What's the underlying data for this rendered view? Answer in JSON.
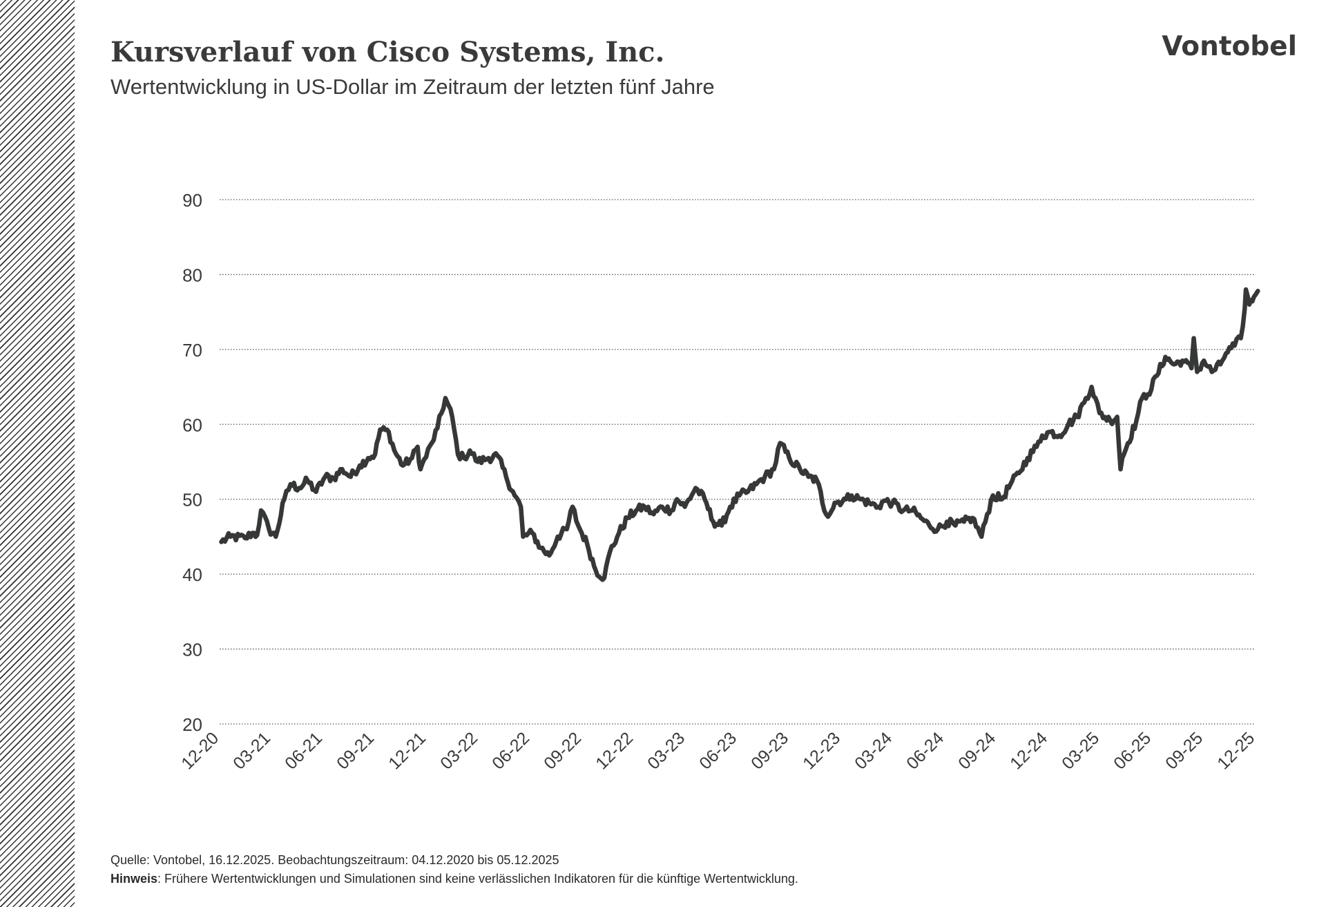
{
  "header": {
    "title": "Kursverlauf von Cisco Systems, Inc.",
    "subtitle": "Wertentwicklung in US-Dollar im Zeitraum der letzten fünf Jahre",
    "brand": "Vontobel"
  },
  "footer": {
    "source": "Quelle: Vontobel, 16.12.2025. Beobachtungszeitraum: 04.12.2020 bis 05.12.2025",
    "note_label": "Hinweis",
    "note_text": ": Frühere Wertentwicklungen und Simulationen sind keine verlässlichen Indikatoren für die künftige Wertentwicklung."
  },
  "colors": {
    "line": "#353836",
    "text": "#3a3a3a",
    "grid": "#555555"
  },
  "chart_data": {
    "type": "line",
    "title": "Kursverlauf von Cisco Systems, Inc.",
    "subtitle": "Wertentwicklung in US-Dollar im Zeitraum der letzten fünf Jahre",
    "xlabel": "",
    "ylabel": "",
    "ylim": [
      20,
      90
    ],
    "yticks": [
      20,
      30,
      40,
      50,
      60,
      70,
      80,
      90
    ],
    "xticks": [
      "12-20",
      "03-21",
      "06-21",
      "09-21",
      "12-21",
      "03-22",
      "06-22",
      "09-22",
      "12-22",
      "03-23",
      "06-23",
      "09-23",
      "12-23",
      "03-24",
      "06-24",
      "09-24",
      "12-24",
      "03-25",
      "06-25",
      "09-25",
      "12-25"
    ],
    "grid": "horizontal dotted",
    "legend": "none",
    "series": [
      {
        "x": [
          "2020-12-04",
          "2020-12-20",
          "2021-01-15",
          "2021-01-28",
          "2021-02-05",
          "2021-02-12",
          "2021-02-26",
          "2021-03-10",
          "2021-03-25",
          "2021-04-05",
          "2021-04-20",
          "2021-05-05",
          "2021-05-20",
          "2021-06-05",
          "2021-06-20",
          "2021-07-05",
          "2021-07-20",
          "2021-08-05",
          "2021-08-20",
          "2021-09-01",
          "2021-09-10",
          "2021-09-25",
          "2021-10-05",
          "2021-10-20",
          "2021-11-05",
          "2021-11-15",
          "2021-11-20",
          "2021-12-10",
          "2021-12-20",
          "2022-01-03",
          "2022-01-15",
          "2022-01-25",
          "2022-02-05",
          "2022-02-15",
          "2022-03-01",
          "2022-03-20",
          "2022-04-05",
          "2022-04-20",
          "2022-05-05",
          "2022-05-16",
          "2022-05-20",
          "2022-06-05",
          "2022-06-20",
          "2022-07-05",
          "2022-07-20",
          "2022-08-05",
          "2022-08-15",
          "2022-08-25",
          "2022-09-10",
          "2022-09-25",
          "2022-10-10",
          "2022-10-20",
          "2022-11-05",
          "2022-11-20",
          "2022-12-05",
          "2022-12-20",
          "2023-01-05",
          "2023-01-20",
          "2023-02-05",
          "2023-02-15",
          "2023-03-01",
          "2023-03-20",
          "2023-04-05",
          "2023-04-20",
          "2023-05-05",
          "2023-05-20",
          "2023-06-05",
          "2023-06-20",
          "2023-07-05",
          "2023-07-20",
          "2023-08-05",
          "2023-08-16",
          "2023-09-01",
          "2023-09-20",
          "2023-10-05",
          "2023-10-20",
          "2023-11-05",
          "2023-11-15",
          "2023-11-20",
          "2023-12-10",
          "2023-12-20",
          "2024-01-05",
          "2024-01-20",
          "2024-02-05",
          "2024-02-15",
          "2024-03-01",
          "2024-03-20",
          "2024-04-05",
          "2024-04-20",
          "2024-05-05",
          "2024-05-20",
          "2024-06-05",
          "2024-06-20",
          "2024-07-05",
          "2024-07-20",
          "2024-08-05",
          "2024-08-15",
          "2024-08-25",
          "2024-09-10",
          "2024-09-25",
          "2024-10-10",
          "2024-10-25",
          "2024-11-10",
          "2024-11-20",
          "2024-12-05",
          "2024-12-20",
          "2025-01-05",
          "2025-01-20",
          "2025-02-05",
          "2025-02-15",
          "2025-03-01",
          "2025-03-20",
          "2025-04-01",
          "2025-04-07",
          "2025-04-10",
          "2025-04-20",
          "2025-05-05",
          "2025-05-15",
          "2025-05-25",
          "2025-06-10",
          "2025-06-25",
          "2025-07-10",
          "2025-07-25",
          "2025-08-10",
          "2025-08-14",
          "2025-08-20",
          "2025-09-01",
          "2025-09-15",
          "2025-09-30",
          "2025-10-10",
          "2025-10-25",
          "2025-11-05",
          "2025-11-12",
          "2025-11-14",
          "2025-11-20",
          "2025-11-28",
          "2025-12-05"
        ],
        "values": [
          44.3,
          45.0,
          44.8,
          45.5,
          45.2,
          48.5,
          46.0,
          45.0,
          50.0,
          52.0,
          51.5,
          52.5,
          51.0,
          53.0,
          52.8,
          54.0,
          53.0,
          54.5,
          55.5,
          56.0,
          59.3,
          59.0,
          56.5,
          54.5,
          55.5,
          57.0,
          54.0,
          57.5,
          59.5,
          63.5,
          61.0,
          56.0,
          55.5,
          56.5,
          55.0,
          55.5,
          55.8,
          53.0,
          50.5,
          49.0,
          45.0,
          45.5,
          43.5,
          42.5,
          45.0,
          46.0,
          49.0,
          46.5,
          44.0,
          40.5,
          39.5,
          43.0,
          45.5,
          47.5,
          48.5,
          49.0,
          48.0,
          49.0,
          48.5,
          50.0,
          49.0,
          51.5,
          50.0,
          47.0,
          46.5,
          49.0,
          50.5,
          51.0,
          52.0,
          53.0,
          54.0,
          57.5,
          55.5,
          54.0,
          53.0,
          52.5,
          48.0,
          48.5,
          49.5,
          50.0,
          50.5,
          50.0,
          49.5,
          49.0,
          49.8,
          49.5,
          48.5,
          48.5,
          47.5,
          46.5,
          46.0,
          47.0,
          46.5,
          47.0,
          47.5,
          45.0,
          48.0,
          50.5,
          50.0,
          52.0,
          53.5,
          55.5,
          57.0,
          58.5,
          59.0,
          58.5,
          60.0,
          61.0,
          63.5,
          65.0,
          61.5,
          60.5,
          61.0,
          54.0,
          55.5,
          57.5,
          60.5,
          63.5,
          64.0,
          66.5,
          69.0,
          68.0,
          68.5,
          67.5,
          71.5,
          67.0,
          68.5,
          67.0,
          68.0,
          69.5,
          70.5,
          71.5,
          75.5,
          78.0,
          76.0,
          77.0,
          77.8
        ]
      }
    ]
  }
}
